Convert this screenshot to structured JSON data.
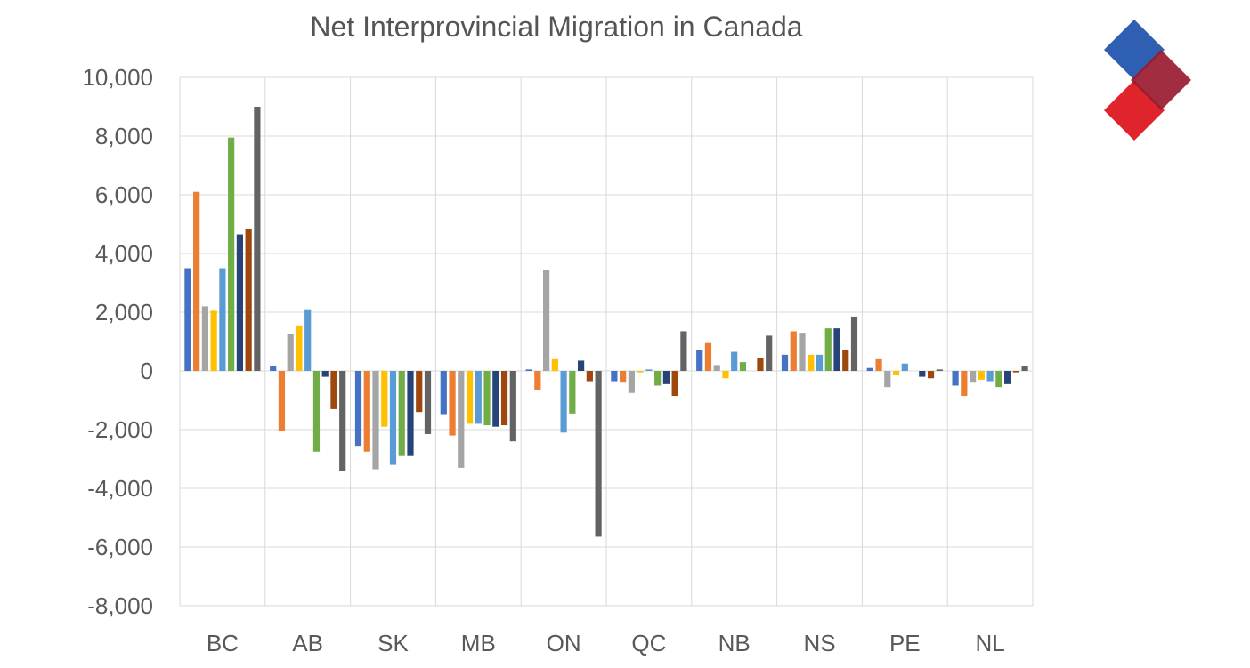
{
  "chart_data": {
    "type": "bar",
    "title": "Net Interprovincial Migration in Canada",
    "xlabel": "",
    "ylabel": "",
    "ylim": [
      -8000,
      10000
    ],
    "yticks": [
      10000,
      8000,
      6000,
      4000,
      2000,
      0,
      -2000,
      -4000,
      -6000,
      -8000
    ],
    "ytick_labels": [
      "10,000",
      "8,000",
      "6,000",
      "4,000",
      "2,000",
      "0",
      "-2,000",
      "-4,000",
      "-6,000",
      "-8,000"
    ],
    "grid": true,
    "legend": "none",
    "categories": [
      "BC",
      "AB",
      "SK",
      "MB",
      "ON",
      "QC",
      "NB",
      "NS",
      "PE",
      "NL"
    ],
    "series": [
      {
        "color": "#4472c4",
        "values": [
          3500,
          150,
          -2550,
          -1500,
          50,
          -350,
          700,
          550,
          100,
          -500
        ]
      },
      {
        "color": "#ed7d31",
        "values": [
          6100,
          -2050,
          -2750,
          -2200,
          -650,
          -400,
          950,
          1350,
          400,
          -850
        ]
      },
      {
        "color": "#a5a5a5",
        "values": [
          2200,
          1250,
          -3350,
          -3300,
          3450,
          -750,
          200,
          1300,
          -550,
          -400
        ]
      },
      {
        "color": "#ffc000",
        "values": [
          2050,
          1550,
          -1900,
          -1800,
          400,
          -50,
          -250,
          550,
          -150,
          -300
        ]
      },
      {
        "color": "#5b9bd5",
        "values": [
          3500,
          2100,
          -3200,
          -1800,
          -2100,
          50,
          650,
          550,
          250,
          -350
        ]
      },
      {
        "color": "#70ad47",
        "values": [
          7950,
          -2750,
          -2900,
          -1850,
          -1450,
          -500,
          300,
          1450,
          0,
          -550
        ]
      },
      {
        "color": "#264478",
        "values": [
          4650,
          -200,
          -2900,
          -1900,
          350,
          -450,
          0,
          1450,
          -200,
          -450
        ]
      },
      {
        "color": "#9e480e",
        "values": [
          4850,
          -1300,
          -1400,
          -1850,
          -350,
          -850,
          450,
          700,
          -250,
          -50
        ]
      },
      {
        "color": "#636363",
        "values": [
          9000,
          -3400,
          -2150,
          -2400,
          -5650,
          1350,
          1200,
          1850,
          50,
          150
        ]
      }
    ]
  },
  "colors": {
    "gridline": "#d9d9d9",
    "tick_text": "#595959",
    "title_text": "#595959",
    "logo_blue": "#2f5fb3",
    "logo_red": "#e0242c",
    "logo_maroon": "#9b1b30"
  },
  "logo": {
    "icon": "diamond-logo-icon"
  }
}
